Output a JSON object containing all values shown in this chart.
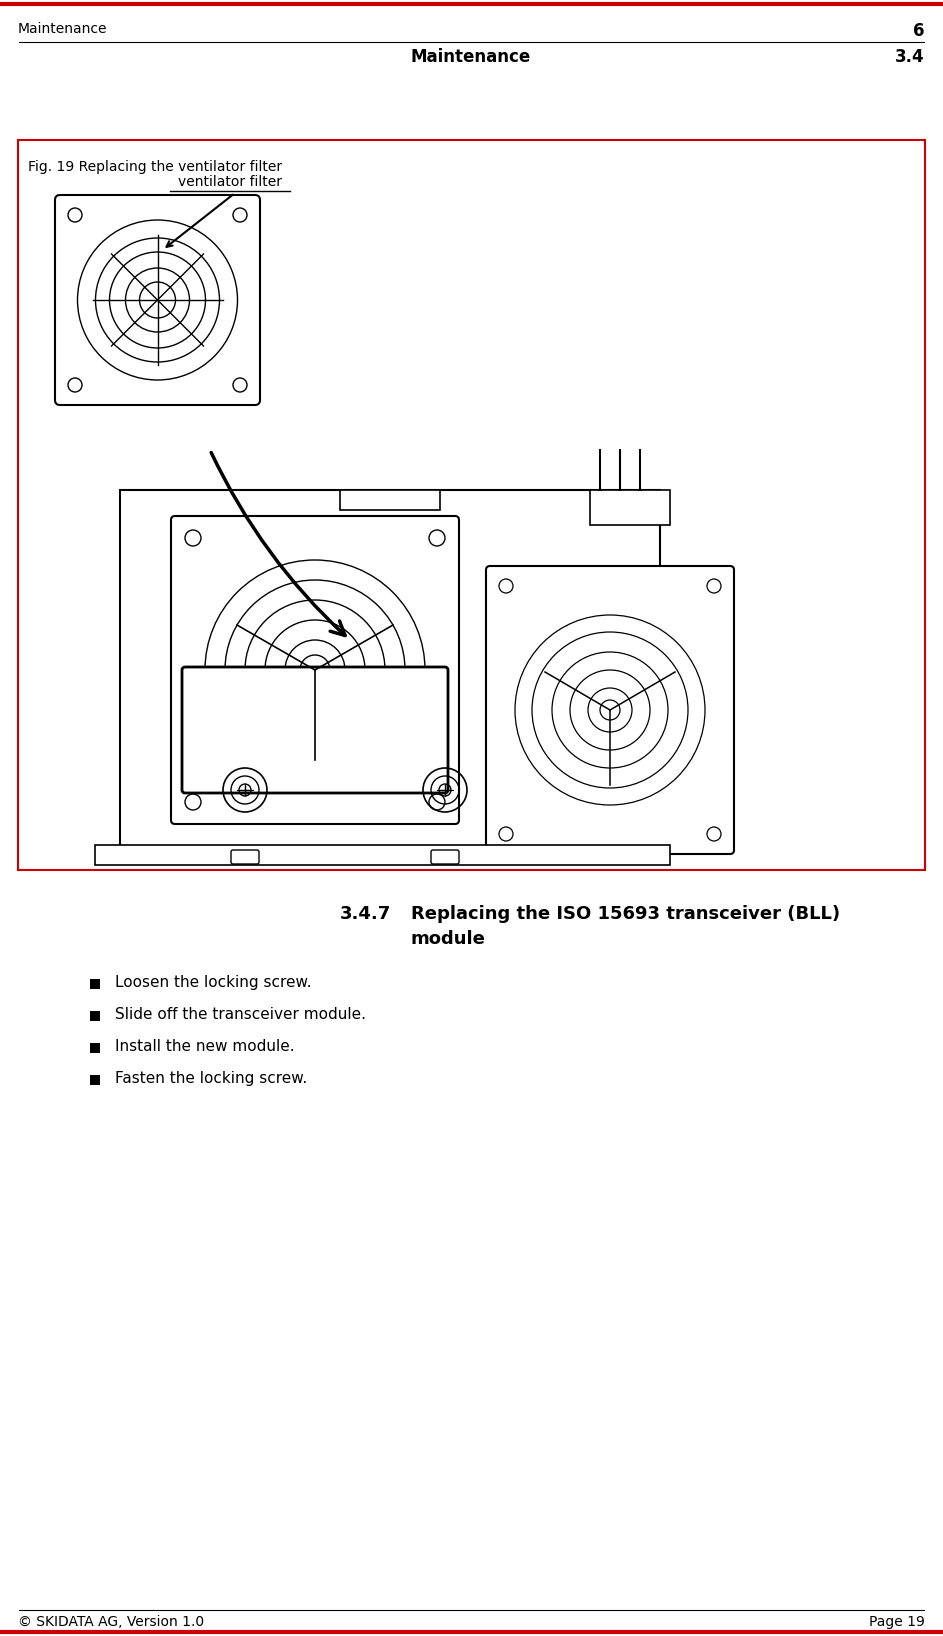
{
  "bg_color": "#ffffff",
  "top_border_color": "#cc0000",
  "bottom_border_color": "#cc0000",
  "header_left": "Maintenance",
  "header_right_num": "6",
  "header_center": "Maintenance",
  "header_section": "3.4",
  "footer_left": "© SKIDATA AG, Version 1.0",
  "footer_right": "Page 19",
  "fig_border_color": "#cc0000",
  "fig_label": "Fig. 19 Replacing the ventilator filter",
  "annotation_label": "ventilator filter",
  "section_num": "3.4.7",
  "section_title_line1": "Replacing the ISO 15693 transceiver (BLL)",
  "section_title_line2": "module",
  "bullets": [
    "Loosen the locking screw.",
    "Slide off the transceiver module.",
    "Install the new module.",
    "Fasten the locking screw."
  ]
}
